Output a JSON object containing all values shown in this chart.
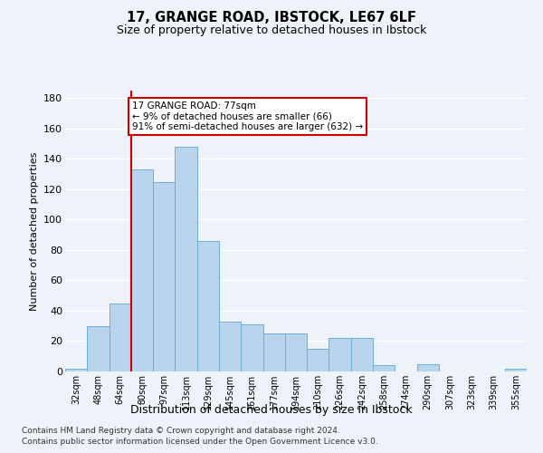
{
  "title1": "17, GRANGE ROAD, IBSTOCK, LE67 6LF",
  "title2": "Size of property relative to detached houses in Ibstock",
  "xlabel": "Distribution of detached houses by size in Ibstock",
  "ylabel": "Number of detached properties",
  "categories": [
    "32sqm",
    "48sqm",
    "64sqm",
    "80sqm",
    "97sqm",
    "113sqm",
    "129sqm",
    "145sqm",
    "161sqm",
    "177sqm",
    "194sqm",
    "210sqm",
    "226sqm",
    "242sqm",
    "258sqm",
    "274sqm",
    "290sqm",
    "307sqm",
    "323sqm",
    "339sqm",
    "355sqm"
  ],
  "values": [
    2,
    30,
    45,
    133,
    125,
    148,
    86,
    33,
    31,
    25,
    25,
    15,
    22,
    22,
    4,
    0,
    5,
    0,
    0,
    0,
    2
  ],
  "bar_color": "#bad4ed",
  "bar_edge_color": "#6aaed6",
  "vline_color": "#cc0000",
  "annotation_line1": "17 GRANGE ROAD: 77sqm",
  "annotation_line2": "← 9% of detached houses are smaller (66)",
  "annotation_line3": "91% of semi-detached houses are larger (632) →",
  "annotation_box_color": "#ffffff",
  "annotation_box_edge_color": "#cc0000",
  "ylim": [
    0,
    185
  ],
  "yticks": [
    0,
    20,
    40,
    60,
    80,
    100,
    120,
    140,
    160,
    180
  ],
  "footnote1": "Contains HM Land Registry data © Crown copyright and database right 2024.",
  "footnote2": "Contains public sector information licensed under the Open Government Licence v3.0.",
  "background_color": "#eef2f9",
  "grid_color": "#ffffff",
  "vline_x_index": 3
}
